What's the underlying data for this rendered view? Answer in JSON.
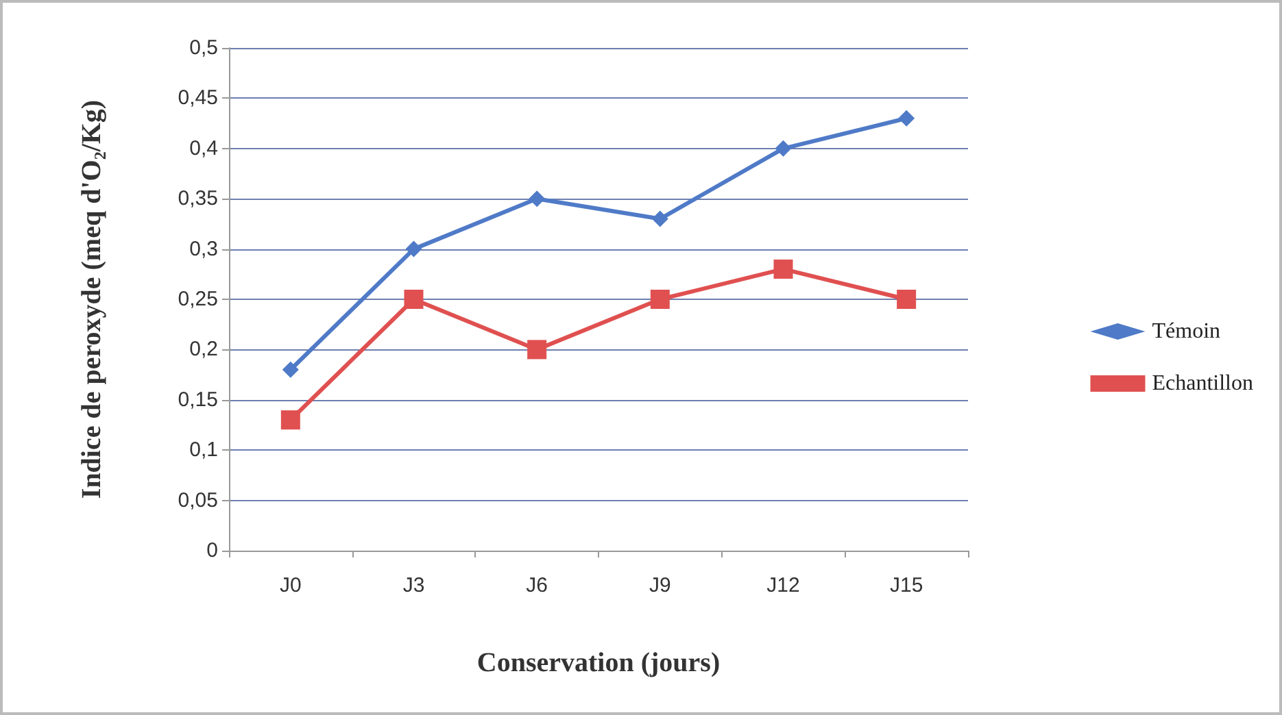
{
  "chart_data": {
    "type": "line",
    "xlabel": "Conservation (jours)",
    "ylabel": "Indice de peroxyde (meq d'O₂/Kg)",
    "categories": [
      "J0",
      "J3",
      "J6",
      "J9",
      "J12",
      "J15"
    ],
    "series": [
      {
        "name": "Témoin",
        "color": "#4f7ac7",
        "marker": "diamond",
        "values": [
          0.18,
          0.3,
          0.35,
          0.33,
          0.4,
          0.43
        ]
      },
      {
        "name": "Echantillon",
        "color": "#e05050",
        "marker": "square",
        "values": [
          0.13,
          0.25,
          0.2,
          0.25,
          0.28,
          0.25
        ]
      }
    ],
    "ylim": [
      0,
      0.5
    ],
    "yticks": [
      {
        "value": 0,
        "label": "0"
      },
      {
        "value": 0.05,
        "label": "0,05"
      },
      {
        "value": 0.1,
        "label": "0,1"
      },
      {
        "value": 0.15,
        "label": "0,15"
      },
      {
        "value": 0.2,
        "label": "0,2"
      },
      {
        "value": 0.25,
        "label": "0,25"
      },
      {
        "value": 0.3,
        "label": "0,3"
      },
      {
        "value": 0.35,
        "label": "0,35"
      },
      {
        "value": 0.4,
        "label": "0,4"
      },
      {
        "value": 0.45,
        "label": "0,45"
      },
      {
        "value": 0.5,
        "label": "0,5"
      }
    ],
    "grid": "y",
    "legend": "right",
    "line_style": "solid"
  }
}
